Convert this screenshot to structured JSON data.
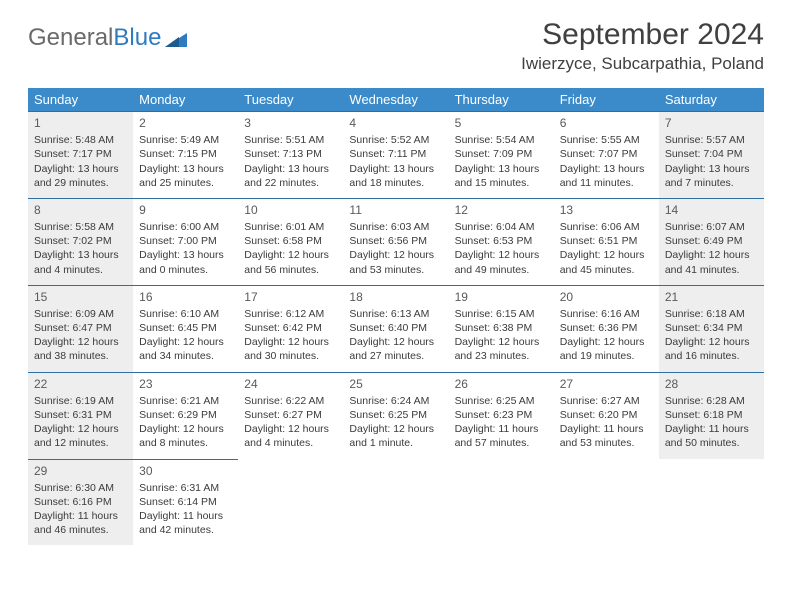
{
  "logo": {
    "part1": "General",
    "part2": "Blue"
  },
  "title": "September 2024",
  "location": "Iwierzyce, Subcarpathia, Poland",
  "colors": {
    "header_bg": "#3b8bca",
    "header_text": "#ffffff",
    "cell_border": "#2e6ea2",
    "shaded_bg": "#eeeeee",
    "text": "#3b3b3b",
    "logo_gray": "#6a6a6a",
    "logo_blue": "#2f7bbf"
  },
  "weekdays": [
    "Sunday",
    "Monday",
    "Tuesday",
    "Wednesday",
    "Thursday",
    "Friday",
    "Saturday"
  ],
  "weeks": [
    [
      {
        "n": "1",
        "shaded": true,
        "sr": "Sunrise: 5:48 AM",
        "ss": "Sunset: 7:17 PM",
        "d1": "Daylight: 13 hours",
        "d2": "and 29 minutes."
      },
      {
        "n": "2",
        "shaded": false,
        "sr": "Sunrise: 5:49 AM",
        "ss": "Sunset: 7:15 PM",
        "d1": "Daylight: 13 hours",
        "d2": "and 25 minutes."
      },
      {
        "n": "3",
        "shaded": false,
        "sr": "Sunrise: 5:51 AM",
        "ss": "Sunset: 7:13 PM",
        "d1": "Daylight: 13 hours",
        "d2": "and 22 minutes."
      },
      {
        "n": "4",
        "shaded": false,
        "sr": "Sunrise: 5:52 AM",
        "ss": "Sunset: 7:11 PM",
        "d1": "Daylight: 13 hours",
        "d2": "and 18 minutes."
      },
      {
        "n": "5",
        "shaded": false,
        "sr": "Sunrise: 5:54 AM",
        "ss": "Sunset: 7:09 PM",
        "d1": "Daylight: 13 hours",
        "d2": "and 15 minutes."
      },
      {
        "n": "6",
        "shaded": false,
        "sr": "Sunrise: 5:55 AM",
        "ss": "Sunset: 7:07 PM",
        "d1": "Daylight: 13 hours",
        "d2": "and 11 minutes."
      },
      {
        "n": "7",
        "shaded": true,
        "sr": "Sunrise: 5:57 AM",
        "ss": "Sunset: 7:04 PM",
        "d1": "Daylight: 13 hours",
        "d2": "and 7 minutes."
      }
    ],
    [
      {
        "n": "8",
        "shaded": true,
        "sr": "Sunrise: 5:58 AM",
        "ss": "Sunset: 7:02 PM",
        "d1": "Daylight: 13 hours",
        "d2": "and 4 minutes."
      },
      {
        "n": "9",
        "shaded": false,
        "sr": "Sunrise: 6:00 AM",
        "ss": "Sunset: 7:00 PM",
        "d1": "Daylight: 13 hours",
        "d2": "and 0 minutes."
      },
      {
        "n": "10",
        "shaded": false,
        "sr": "Sunrise: 6:01 AM",
        "ss": "Sunset: 6:58 PM",
        "d1": "Daylight: 12 hours",
        "d2": "and 56 minutes."
      },
      {
        "n": "11",
        "shaded": false,
        "sr": "Sunrise: 6:03 AM",
        "ss": "Sunset: 6:56 PM",
        "d1": "Daylight: 12 hours",
        "d2": "and 53 minutes."
      },
      {
        "n": "12",
        "shaded": false,
        "sr": "Sunrise: 6:04 AM",
        "ss": "Sunset: 6:53 PM",
        "d1": "Daylight: 12 hours",
        "d2": "and 49 minutes."
      },
      {
        "n": "13",
        "shaded": false,
        "sr": "Sunrise: 6:06 AM",
        "ss": "Sunset: 6:51 PM",
        "d1": "Daylight: 12 hours",
        "d2": "and 45 minutes."
      },
      {
        "n": "14",
        "shaded": true,
        "sr": "Sunrise: 6:07 AM",
        "ss": "Sunset: 6:49 PM",
        "d1": "Daylight: 12 hours",
        "d2": "and 41 minutes."
      }
    ],
    [
      {
        "n": "15",
        "shaded": true,
        "sr": "Sunrise: 6:09 AM",
        "ss": "Sunset: 6:47 PM",
        "d1": "Daylight: 12 hours",
        "d2": "and 38 minutes."
      },
      {
        "n": "16",
        "shaded": false,
        "sr": "Sunrise: 6:10 AM",
        "ss": "Sunset: 6:45 PM",
        "d1": "Daylight: 12 hours",
        "d2": "and 34 minutes."
      },
      {
        "n": "17",
        "shaded": false,
        "sr": "Sunrise: 6:12 AM",
        "ss": "Sunset: 6:42 PM",
        "d1": "Daylight: 12 hours",
        "d2": "and 30 minutes."
      },
      {
        "n": "18",
        "shaded": false,
        "sr": "Sunrise: 6:13 AM",
        "ss": "Sunset: 6:40 PM",
        "d1": "Daylight: 12 hours",
        "d2": "and 27 minutes."
      },
      {
        "n": "19",
        "shaded": false,
        "sr": "Sunrise: 6:15 AM",
        "ss": "Sunset: 6:38 PM",
        "d1": "Daylight: 12 hours",
        "d2": "and 23 minutes."
      },
      {
        "n": "20",
        "shaded": false,
        "sr": "Sunrise: 6:16 AM",
        "ss": "Sunset: 6:36 PM",
        "d1": "Daylight: 12 hours",
        "d2": "and 19 minutes."
      },
      {
        "n": "21",
        "shaded": true,
        "sr": "Sunrise: 6:18 AM",
        "ss": "Sunset: 6:34 PM",
        "d1": "Daylight: 12 hours",
        "d2": "and 16 minutes."
      }
    ],
    [
      {
        "n": "22",
        "shaded": true,
        "sr": "Sunrise: 6:19 AM",
        "ss": "Sunset: 6:31 PM",
        "d1": "Daylight: 12 hours",
        "d2": "and 12 minutes."
      },
      {
        "n": "23",
        "shaded": false,
        "sr": "Sunrise: 6:21 AM",
        "ss": "Sunset: 6:29 PM",
        "d1": "Daylight: 12 hours",
        "d2": "and 8 minutes."
      },
      {
        "n": "24",
        "shaded": false,
        "sr": "Sunrise: 6:22 AM",
        "ss": "Sunset: 6:27 PM",
        "d1": "Daylight: 12 hours",
        "d2": "and 4 minutes."
      },
      {
        "n": "25",
        "shaded": false,
        "sr": "Sunrise: 6:24 AM",
        "ss": "Sunset: 6:25 PM",
        "d1": "Daylight: 12 hours",
        "d2": "and 1 minute."
      },
      {
        "n": "26",
        "shaded": false,
        "sr": "Sunrise: 6:25 AM",
        "ss": "Sunset: 6:23 PM",
        "d1": "Daylight: 11 hours",
        "d2": "and 57 minutes."
      },
      {
        "n": "27",
        "shaded": false,
        "sr": "Sunrise: 6:27 AM",
        "ss": "Sunset: 6:20 PM",
        "d1": "Daylight: 11 hours",
        "d2": "and 53 minutes."
      },
      {
        "n": "28",
        "shaded": true,
        "sr": "Sunrise: 6:28 AM",
        "ss": "Sunset: 6:18 PM",
        "d1": "Daylight: 11 hours",
        "d2": "and 50 minutes."
      }
    ],
    [
      {
        "n": "29",
        "shaded": true,
        "sr": "Sunrise: 6:30 AM",
        "ss": "Sunset: 6:16 PM",
        "d1": "Daylight: 11 hours",
        "d2": "and 46 minutes."
      },
      {
        "n": "30",
        "shaded": false,
        "sr": "Sunrise: 6:31 AM",
        "ss": "Sunset: 6:14 PM",
        "d1": "Daylight: 11 hours",
        "d2": "and 42 minutes."
      },
      {
        "empty": true
      },
      {
        "empty": true
      },
      {
        "empty": true
      },
      {
        "empty": true
      },
      {
        "empty": true
      }
    ]
  ]
}
